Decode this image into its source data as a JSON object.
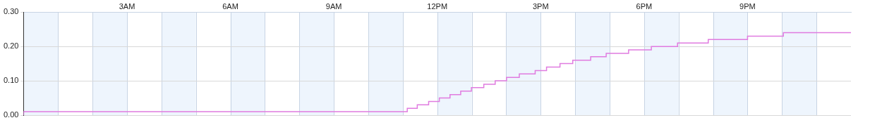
{
  "chart_data": {
    "type": "line",
    "x": [
      0,
      11.13,
      11.42,
      11.75,
      12.06,
      12.37,
      12.68,
      12.99,
      13.35,
      13.68,
      14.01,
      14.38,
      14.84,
      15.17,
      15.56,
      15.93,
      16.45,
      16.9,
      17.55,
      18.21,
      18.97,
      19.86,
      21.0,
      22.04,
      23.48,
      24
    ],
    "values": [
      0,
      0.01,
      0.02,
      0.03,
      0.04,
      0.05,
      0.06,
      0.07,
      0.08,
      0.09,
      0.1,
      0.11,
      0.12,
      0.13,
      0.14,
      0.15,
      0.16,
      0.17,
      0.18,
      0.19,
      0.2,
      0.21,
      0.22,
      0.23,
      0.24,
      0.24
    ],
    "color": "#e07be0",
    "line_style": "step",
    "xlim": [
      0,
      24
    ],
    "xticks": [
      {
        "value": 3,
        "label": "3AM"
      },
      {
        "value": 6,
        "label": "6AM"
      },
      {
        "value": 9,
        "label": "9AM"
      },
      {
        "value": 12,
        "label": "12PM"
      },
      {
        "value": 15,
        "label": "3PM"
      },
      {
        "value": 18,
        "label": "6PM"
      },
      {
        "value": 21,
        "label": "9PM"
      }
    ],
    "ylim": [
      0,
      0.3
    ],
    "yticks": [
      {
        "value": 0,
        "label": "0.00"
      },
      {
        "value": 0.1,
        "label": "0.10"
      },
      {
        "value": 0.2,
        "label": "0.20"
      },
      {
        "value": 0.3,
        "label": "0.30"
      }
    ],
    "grid": true
  }
}
